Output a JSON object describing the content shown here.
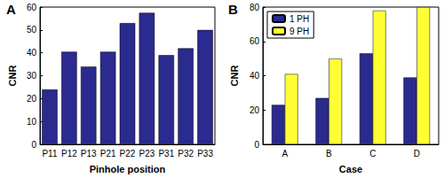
{
  "chart_data": [
    {
      "type": "bar",
      "title": "A",
      "xlabel": "Pinhole position",
      "ylabel": "CNR",
      "categories": [
        "P11",
        "P12",
        "P13",
        "P21",
        "P22",
        "P23",
        "P31",
        "P32",
        "P33"
      ],
      "values": [
        24,
        40.5,
        34,
        40.5,
        53,
        57.5,
        39,
        42,
        50
      ],
      "color": "#2a2a8f",
      "ylim": [
        0,
        60
      ],
      "yticks": [
        0,
        10,
        20,
        30,
        40,
        50,
        60
      ],
      "grid": false
    },
    {
      "type": "bar",
      "title": "B",
      "xlabel": "Case",
      "ylabel": "CNR",
      "categories": [
        "A",
        "B",
        "C",
        "D"
      ],
      "series": [
        {
          "name": "1 PH",
          "color": "#2a2a8f",
          "values": [
            23,
            27,
            53,
            39
          ]
        },
        {
          "name": "9 PH",
          "color": "#ffff33",
          "values": [
            41,
            50,
            78,
            80
          ]
        }
      ],
      "ylim": [
        0,
        80
      ],
      "yticks": [
        0,
        20,
        40,
        60,
        80
      ],
      "grid": false,
      "legend": "upper left"
    }
  ]
}
